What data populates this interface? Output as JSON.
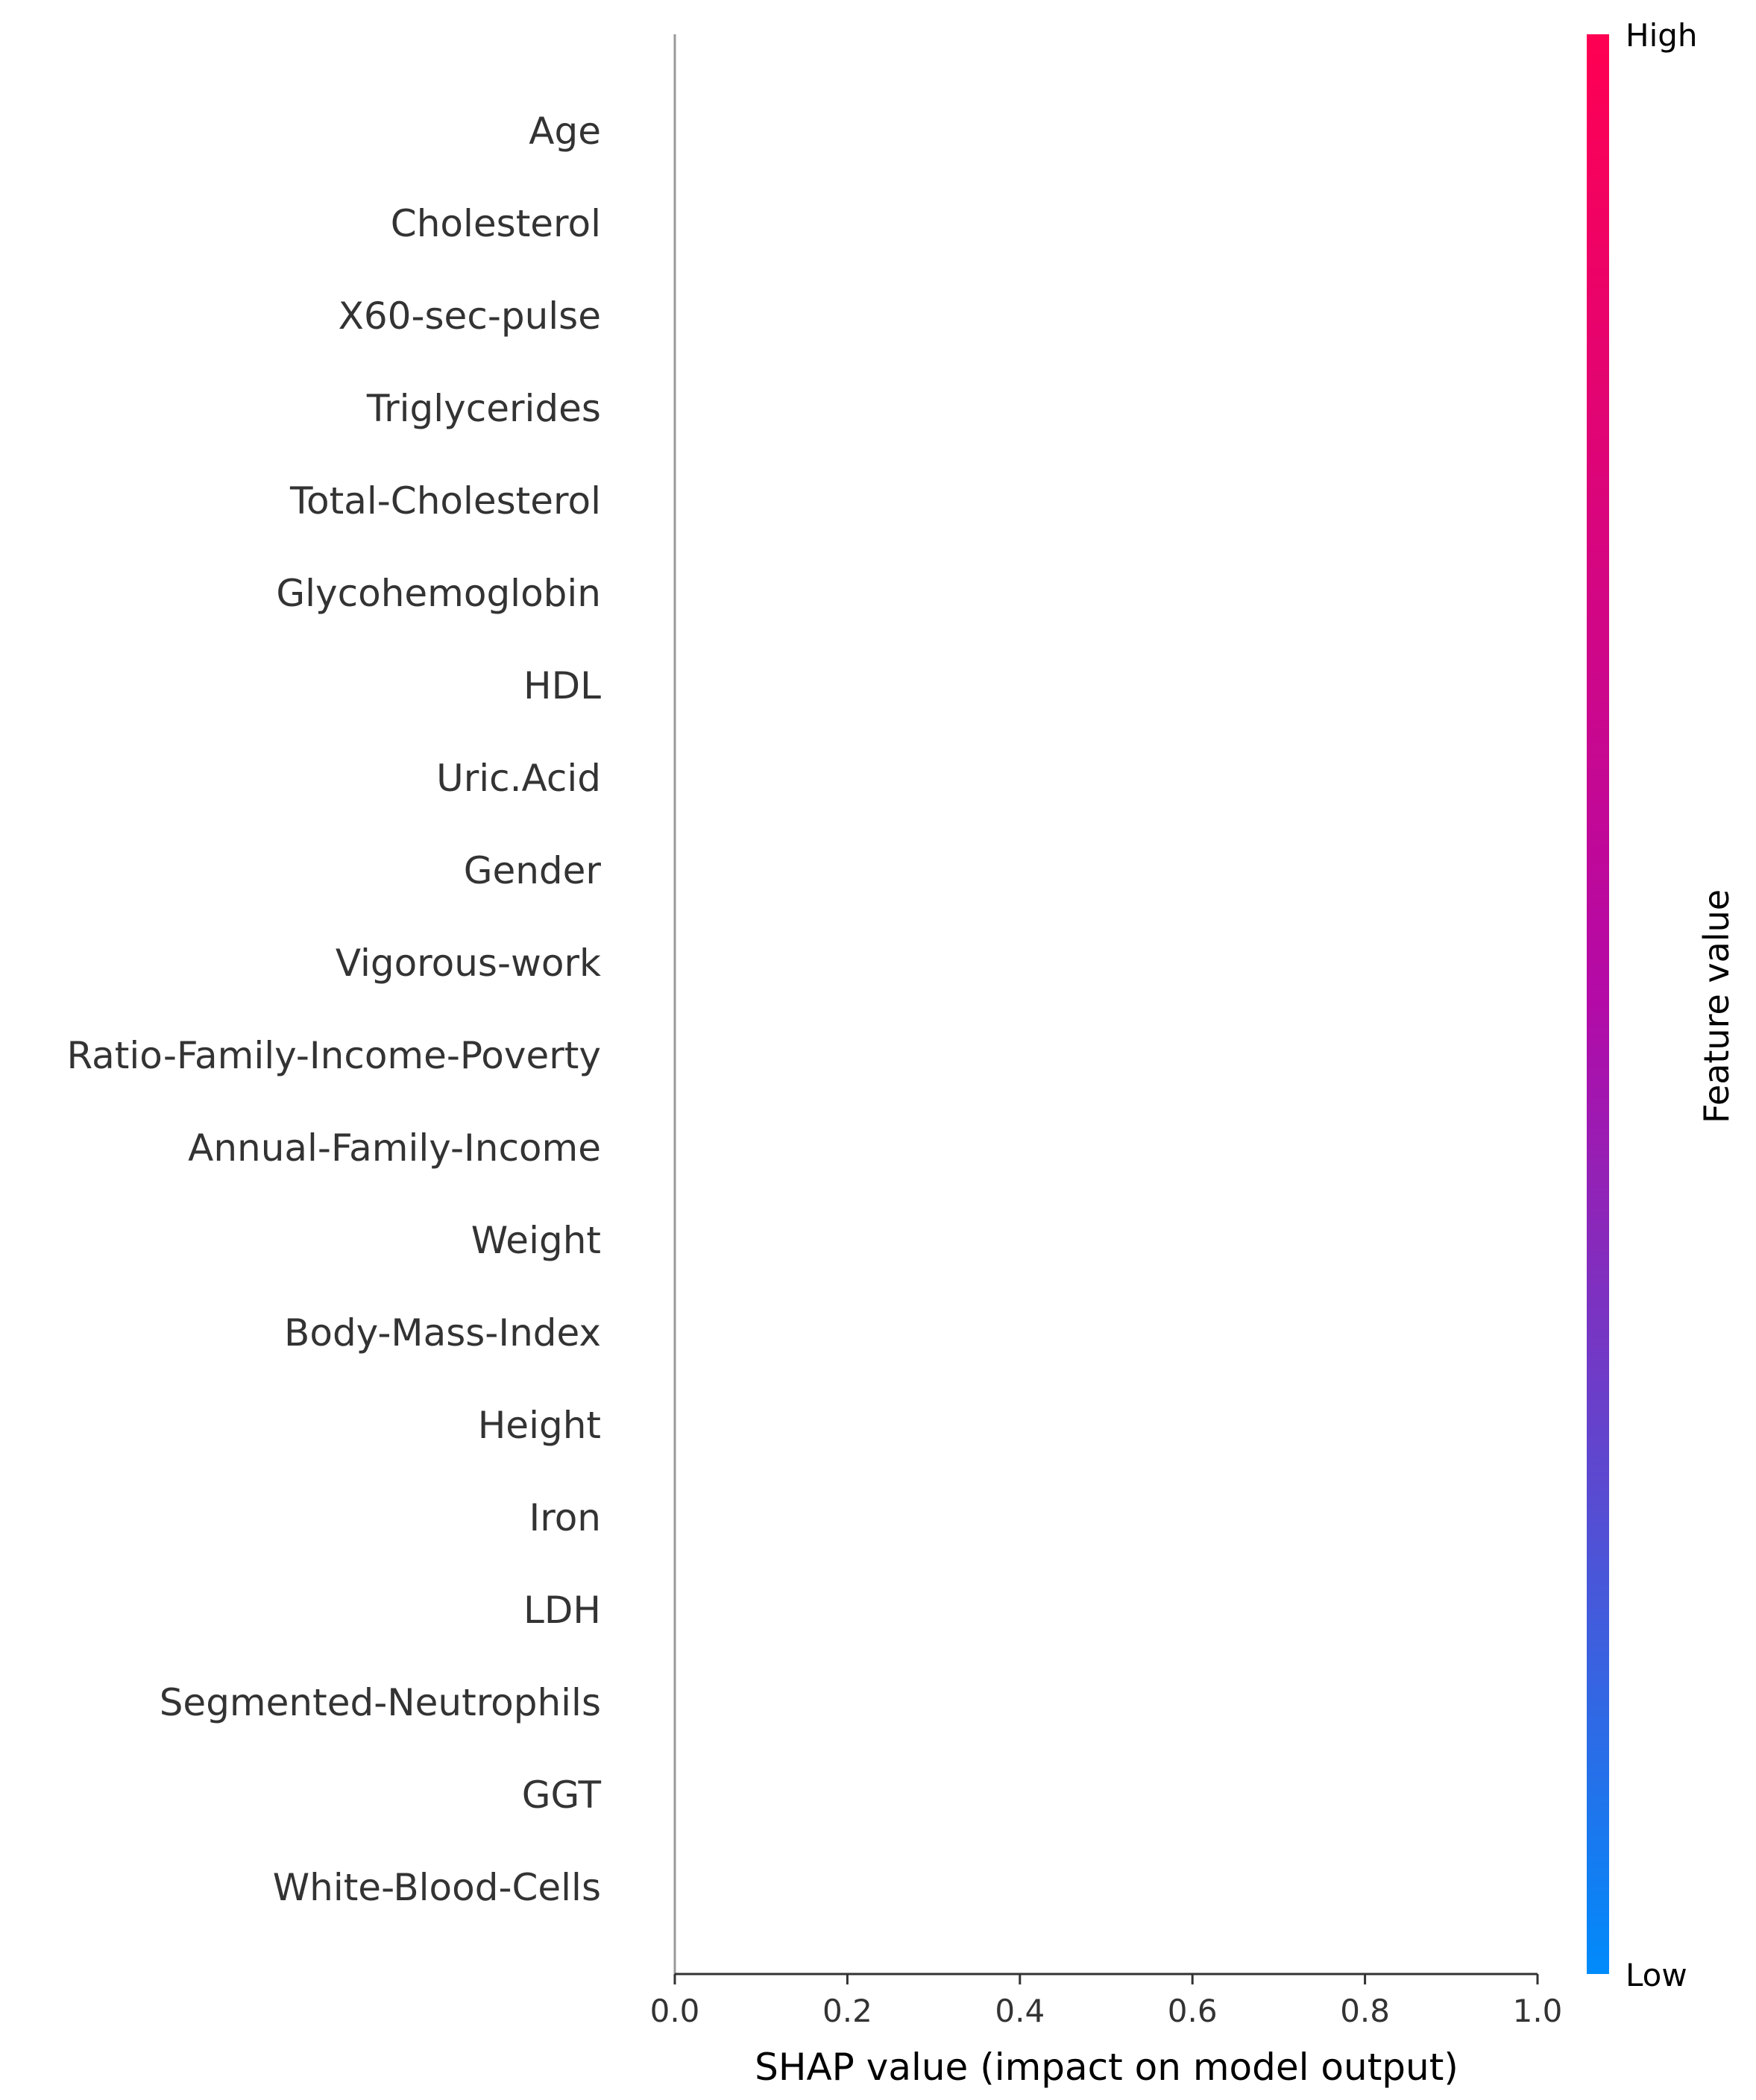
{
  "chart_data": {
    "type": "scatter",
    "features": [
      "Age",
      "Cholesterol",
      "X60-sec-pulse",
      "Triglycerides",
      "Total-Cholesterol",
      "Glycohemoglobin",
      "HDL",
      "Uric.Acid",
      "Gender",
      "Vigorous-work",
      "Ratio-Family-Income-Poverty",
      "Annual-Family-Income",
      "Weight",
      "Body-Mass-Index",
      "Height",
      "Iron",
      "LDH",
      "Segmented-Neutrophils",
      "GGT",
      "White-Blood-Cells"
    ],
    "points": [],
    "xlabel": "SHAP value (impact on model output)",
    "xlim": [
      0.0,
      1.0
    ],
    "x_ticks": [
      "0.0",
      "0.2",
      "0.4",
      "0.6",
      "0.8",
      "1.0"
    ],
    "zero_line": 0.0,
    "colorbar": {
      "title": "Feature value",
      "high_label": "High",
      "low_label": "Low",
      "high_color": "#ff0052",
      "mid_color": "#b30aa7",
      "low_color": "#008bfb"
    },
    "grid": false
  }
}
